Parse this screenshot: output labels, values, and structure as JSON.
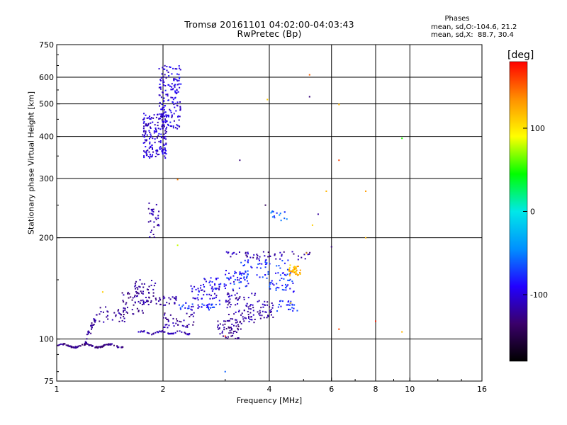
{
  "header": {
    "title_line1": "Tromsø 20161101 04:02:00-04:03:43",
    "title_line2": "RwPretec (Bp)",
    "stats_heading": "Phases",
    "stats_o": "mean, sd,O:-104.6, 21.2",
    "stats_x": "mean, sd,X:  88.7, 30.4"
  },
  "colorbar": {
    "unit": "[deg]",
    "ticks": [
      100,
      0,
      -100
    ],
    "range": [
      -180,
      180
    ],
    "palette": [
      "#000000",
      "#3a006a",
      "#2200ff",
      "#0090ff",
      "#00e8e8",
      "#00ff00",
      "#ffff00",
      "#ff9000",
      "#ff0000"
    ]
  },
  "chart_data": {
    "type": "scatter",
    "xlabel": "Frequency [MHz]",
    "ylabel": "Stationary phase Virtual Height [km]",
    "xscale": "log",
    "yscale": "log",
    "xlim": [
      1,
      16
    ],
    "ylim": [
      75,
      750
    ],
    "xticks": [
      1,
      2,
      4,
      6,
      8,
      10,
      16
    ],
    "xgrid": [
      2,
      4,
      6,
      8,
      10
    ],
    "yticks": [
      75,
      100,
      200,
      300,
      400,
      500,
      600,
      750
    ],
    "ygrid": [
      100,
      200,
      300,
      400,
      500,
      600
    ],
    "clusters": [
      {
        "x": [
          1.0,
          1.55
        ],
        "y": [
          94,
          97
        ],
        "n": 120,
        "phase": [
          -140,
          -115
        ],
        "shape": "trace"
      },
      {
        "x": [
          1.2,
          1.3
        ],
        "y": [
          97,
          118
        ],
        "n": 30,
        "phase": [
          -135,
          -110
        ],
        "shape": "rise"
      },
      {
        "x": [
          1.3,
          1.58
        ],
        "y": [
          112,
          125
        ],
        "n": 30,
        "phase": [
          -135,
          -110
        ],
        "shape": "band"
      },
      {
        "x": [
          1.52,
          1.78
        ],
        "y": [
          118,
          140
        ],
        "n": 40,
        "phase": [
          -135,
          -110
        ],
        "shape": "band"
      },
      {
        "x": [
          1.66,
          1.92
        ],
        "y": [
          134,
          150
        ],
        "n": 30,
        "phase": [
          -130,
          -110
        ],
        "shape": "band"
      },
      {
        "x": [
          1.7,
          2.4
        ],
        "y": [
          103,
          106
        ],
        "n": 50,
        "phase": [
          -130,
          -100
        ],
        "shape": "trace"
      },
      {
        "x": [
          1.72,
          2.2
        ],
        "y": [
          126,
          134
        ],
        "n": 45,
        "phase": [
          -130,
          -105
        ],
        "shape": "band"
      },
      {
        "x": [
          2.0,
          2.45
        ],
        "y": [
          108,
          120
        ],
        "n": 40,
        "phase": [
          -135,
          -105
        ],
        "shape": "band"
      },
      {
        "x": [
          2.2,
          2.9
        ],
        "y": [
          122,
          128
        ],
        "n": 40,
        "phase": [
          -110,
          -60
        ],
        "shape": "band"
      },
      {
        "x": [
          2.4,
          2.9
        ],
        "y": [
          130,
          145
        ],
        "n": 40,
        "phase": [
          -115,
          -80
        ],
        "shape": "band"
      },
      {
        "x": [
          2.6,
          3.5
        ],
        "y": [
          140,
          152
        ],
        "n": 40,
        "phase": [
          -110,
          -70
        ],
        "shape": "band"
      },
      {
        "x": [
          2.85,
          3.35
        ],
        "y": [
          100,
          115
        ],
        "n": 60,
        "phase": [
          -135,
          -110
        ],
        "shape": "band"
      },
      {
        "x": [
          3.0,
          3.65
        ],
        "y": [
          112,
          140
        ],
        "n": 60,
        "phase": [
          -130,
          -100
        ],
        "shape": "band"
      },
      {
        "x": [
          3.4,
          4.1
        ],
        "y": [
          115,
          130
        ],
        "n": 50,
        "phase": [
          -130,
          -105
        ],
        "shape": "band"
      },
      {
        "x": [
          3.0,
          3.5
        ],
        "y": [
          145,
          160
        ],
        "n": 30,
        "phase": [
          -100,
          -50
        ],
        "shape": "band"
      },
      {
        "x": [
          3.3,
          4.6
        ],
        "y": [
          150,
          172
        ],
        "n": 60,
        "phase": [
          -100,
          -60
        ],
        "shape": "band"
      },
      {
        "x": [
          3.0,
          5.3
        ],
        "y": [
          172,
          182
        ],
        "n": 50,
        "phase": [
          -135,
          -100
        ],
        "shape": "band"
      },
      {
        "x": [
          4.0,
          4.7
        ],
        "y": [
          138,
          150
        ],
        "n": 30,
        "phase": [
          -100,
          -60
        ],
        "shape": "band"
      },
      {
        "x": [
          4.2,
          4.8
        ],
        "y": [
          120,
          130
        ],
        "n": 25,
        "phase": [
          -100,
          -60
        ],
        "shape": "band"
      },
      {
        "x": [
          4.55,
          4.9
        ],
        "y": [
          154,
          166
        ],
        "n": 40,
        "phase": [
          100,
          140
        ],
        "shape": "band"
      },
      {
        "x": [
          1.82,
          1.95
        ],
        "y": [
          200,
          255
        ],
        "n": 30,
        "phase": [
          -130,
          -100
        ],
        "shape": "band"
      },
      {
        "x": [
          1.75,
          2.05
        ],
        "y": [
          345,
          470
        ],
        "n": 180,
        "phase": [
          -120,
          -85
        ],
        "shape": "band"
      },
      {
        "x": [
          1.95,
          2.25
        ],
        "y": [
          420,
          650
        ],
        "n": 160,
        "phase": [
          -115,
          -80
        ],
        "shape": "band"
      },
      {
        "x": [
          4.0,
          4.5
        ],
        "y": [
          225,
          240
        ],
        "n": 15,
        "phase": [
          -80,
          -40
        ],
        "shape": "band"
      }
    ],
    "sparse_points": [
      {
        "x": 3.95,
        "y": 515,
        "phase": 110
      },
      {
        "x": 5.2,
        "y": 610,
        "phase": 150
      },
      {
        "x": 5.2,
        "y": 525,
        "phase": -130
      },
      {
        "x": 6.3,
        "y": 498,
        "phase": 120
      },
      {
        "x": 9.5,
        "y": 395,
        "phase": 50
      },
      {
        "x": 3.3,
        "y": 340,
        "phase": -130
      },
      {
        "x": 6.3,
        "y": 340,
        "phase": 160
      },
      {
        "x": 2.2,
        "y": 298,
        "phase": 140
      },
      {
        "x": 5.8,
        "y": 275,
        "phase": 120
      },
      {
        "x": 7.5,
        "y": 275,
        "phase": 130
      },
      {
        "x": 3.9,
        "y": 250,
        "phase": -140
      },
      {
        "x": 5.5,
        "y": 235,
        "phase": -120
      },
      {
        "x": 5.3,
        "y": 218,
        "phase": 110
      },
      {
        "x": 7.5,
        "y": 200,
        "phase": 120
      },
      {
        "x": 6.0,
        "y": 188,
        "phase": -130
      },
      {
        "x": 5.1,
        "y": 180,
        "phase": 120
      },
      {
        "x": 2.2,
        "y": 190,
        "phase": 80
      },
      {
        "x": 3.0,
        "y": 102,
        "phase": 170
      },
      {
        "x": 3.0,
        "y": 80,
        "phase": -60
      },
      {
        "x": 8.0,
        "y": 113,
        "phase": 170
      },
      {
        "x": 6.3,
        "y": 107,
        "phase": 160
      },
      {
        "x": 9.5,
        "y": 105,
        "phase": 120
      },
      {
        "x": 1.35,
        "y": 138,
        "phase": 110
      },
      {
        "x": 4.6,
        "y": 128,
        "phase": 110
      }
    ]
  }
}
